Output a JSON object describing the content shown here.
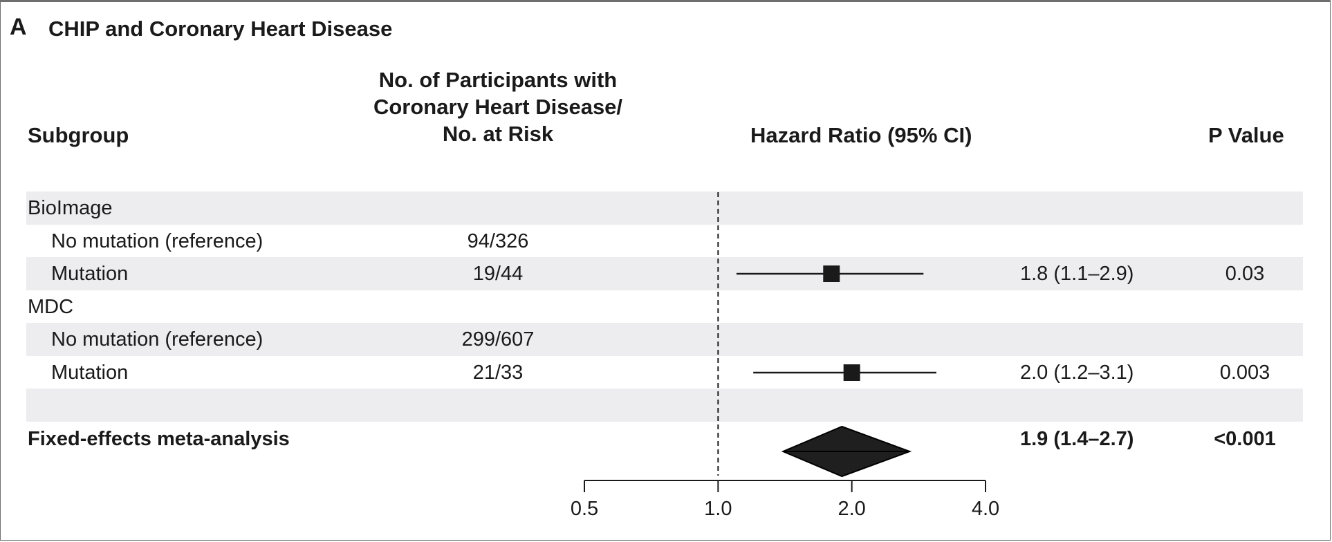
{
  "panel": {
    "letter": "A",
    "title": "CHIP and Coronary Heart Disease"
  },
  "headers": {
    "subgroup": "Subgroup",
    "count_line1": "No. of Participants with",
    "count_line2": "Coronary Heart Disease/",
    "count_line3": "No. at Risk",
    "hazard_ratio": "Hazard Ratio (95% CI)",
    "p_value": "P Value"
  },
  "rows": [
    {
      "label": "BioImage",
      "count": "",
      "hr": "",
      "p": ""
    },
    {
      "label": "No mutation (reference)",
      "count": "94/326",
      "hr": "",
      "p": ""
    },
    {
      "label": "Mutation",
      "count": "19/44",
      "hr": "1.8 (1.1–2.9)",
      "p": "0.03"
    },
    {
      "label": "MDC",
      "count": "",
      "hr": "",
      "p": ""
    },
    {
      "label": "No mutation (reference)",
      "count": "299/607",
      "hr": "",
      "p": ""
    },
    {
      "label": "Mutation",
      "count": "21/33",
      "hr": "2.0 (1.2–3.1)",
      "p": "0.003"
    },
    {
      "label": "Fixed-effects meta-analysis",
      "count": "",
      "hr": "1.9 (1.4–2.7)",
      "p": "<0.001"
    }
  ],
  "chart_data": {
    "type": "forest",
    "x_scale": "log2",
    "xlim": [
      0.5,
      4.0
    ],
    "reference_line": 1.0,
    "ticks": [
      0.5,
      1.0,
      2.0,
      4.0
    ],
    "tick_labels": [
      "0.5",
      "1.0",
      "2.0",
      "4.0"
    ],
    "estimates": [
      {
        "subgroup": "BioImage mutation",
        "hr": 1.8,
        "lower": 1.1,
        "upper": 2.9,
        "marker": "square"
      },
      {
        "subgroup": "MDC mutation",
        "hr": 2.0,
        "lower": 1.2,
        "upper": 3.1,
        "marker": "square"
      },
      {
        "subgroup": "Fixed-effects meta-analysis",
        "hr": 1.9,
        "lower": 1.4,
        "upper": 2.7,
        "marker": "diamond"
      }
    ],
    "colors": {
      "marker": "#1a1a1a",
      "band": "#ededf0",
      "diamond": "#1f1f1f"
    }
  }
}
